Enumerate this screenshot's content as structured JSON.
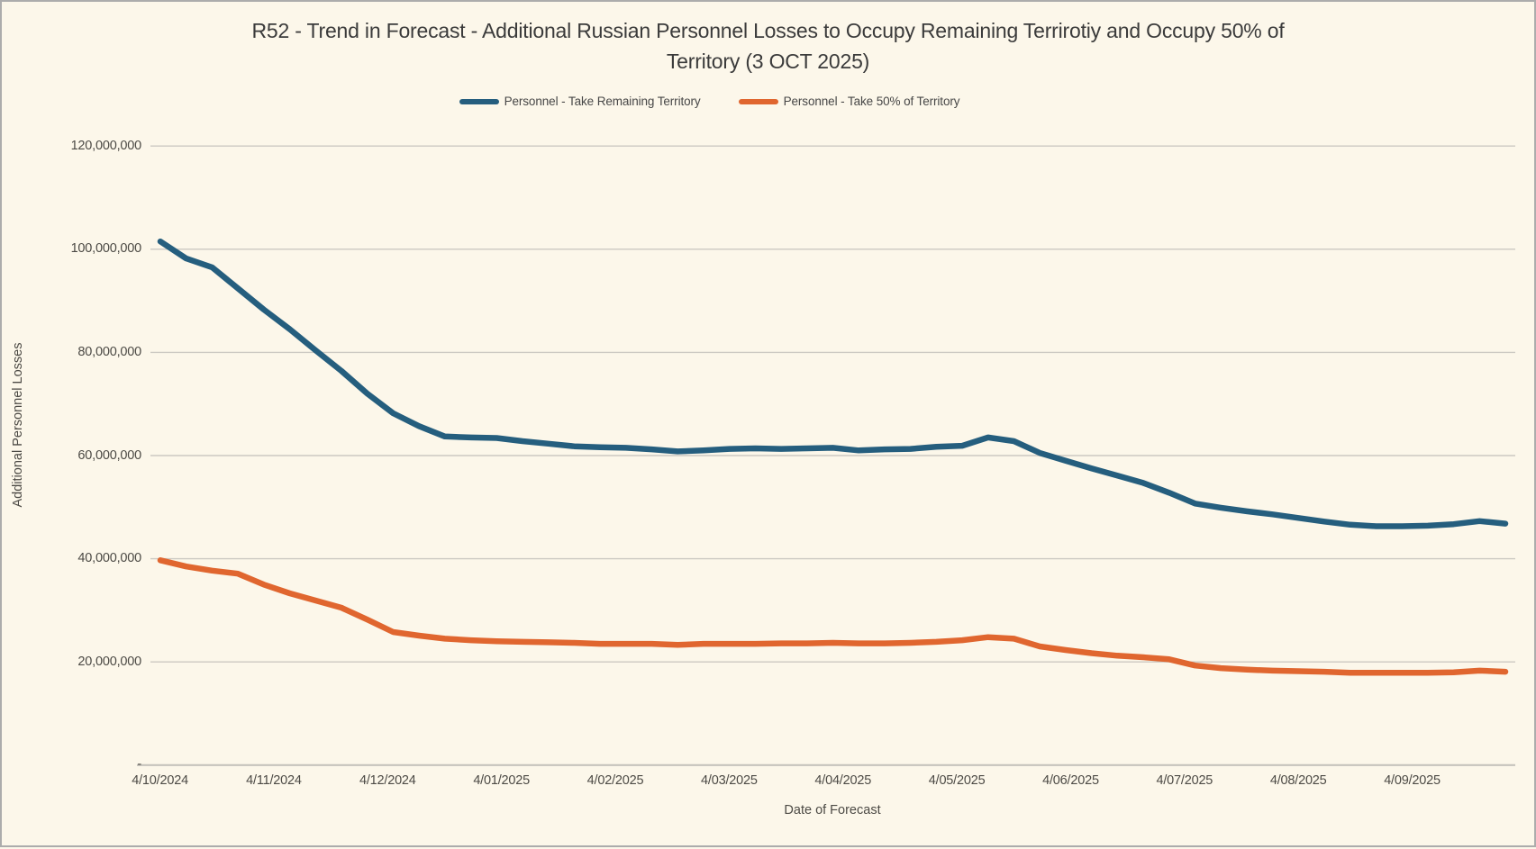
{
  "title": {
    "line1": "R52 - Trend in Forecast - Additional Russian Personnel Losses to Occupy Remaining Terrirotiy and Occupy 50% of",
    "line2": "Territory (3 OCT 2025)"
  },
  "colors": {
    "background": "#FCF7EA",
    "border": "#ACACAC",
    "gridline": "#CCC9C2",
    "axis_line": "#C6C3BC",
    "text": "#4C4A45",
    "series_remaining": "#255E7E",
    "series_fifty_pct": "#E0662F"
  },
  "chart_data": {
    "type": "line",
    "title": "R52 - Trend in Forecast - Additional Russian Personnel Losses to Occupy Remaining Terrirotiy and Occupy 50% of Territory (3 OCT 2025)",
    "x_axis": {
      "title": "Date of Forecast",
      "tick_labels": [
        "4/10/2024",
        "4/11/2024",
        "4/12/2024",
        "4/01/2025",
        "4/02/2025",
        "4/03/2025",
        "4/04/2025",
        "4/05/2025",
        "4/06/2025",
        "4/07/2025",
        "4/08/2025",
        "4/09/2025"
      ]
    },
    "y_axis": {
      "title": "Additional Personnel Losses",
      "tick_labels": [
        "-",
        "20,000,000",
        "40,000,000",
        "60,000,000",
        "80,000,000",
        "100,000,000",
        "120,000,000"
      ],
      "min": 0,
      "max": 120000000,
      "gridline_step": 20000000,
      "grid": true
    },
    "legend_position": "top",
    "points_note": "weekly forecast points",
    "series": [
      {
        "name": "Personnel - Take Remaining Territory",
        "color": "#255E7E",
        "values": [
          101500000,
          98200000,
          96500000,
          92400000,
          88300000,
          84500000,
          80400000,
          76400000,
          72000000,
          68200000,
          65700000,
          63700000,
          63500000,
          63400000,
          62800000,
          62300000,
          61800000,
          61600000,
          61500000,
          61200000,
          60800000,
          61000000,
          61300000,
          61400000,
          61300000,
          61400000,
          61500000,
          61000000,
          61200000,
          61300000,
          61700000,
          61900000,
          63500000,
          62800000,
          60500000,
          59000000,
          57500000,
          56100000,
          54700000,
          52800000,
          50700000,
          49900000,
          49200000,
          48600000,
          47900000,
          47200000,
          46600000,
          46300000,
          46300000,
          46400000,
          46700000,
          47300000,
          46800000
        ]
      },
      {
        "name": "Personnel - Take 50% of Territory",
        "color": "#E0662F",
        "values": [
          39700000,
          38500000,
          37700000,
          37100000,
          35000000,
          33300000,
          31900000,
          30500000,
          28200000,
          25800000,
          25100000,
          24500000,
          24200000,
          24000000,
          23900000,
          23800000,
          23700000,
          23500000,
          23500000,
          23500000,
          23300000,
          23500000,
          23500000,
          23500000,
          23600000,
          23600000,
          23700000,
          23600000,
          23600000,
          23700000,
          23900000,
          24200000,
          24800000,
          24500000,
          23000000,
          22300000,
          21700000,
          21200000,
          20900000,
          20500000,
          19300000,
          18800000,
          18500000,
          18300000,
          18200000,
          18100000,
          17900000,
          17900000,
          17900000,
          17900000,
          18000000,
          18300000,
          18100000
        ]
      }
    ]
  }
}
